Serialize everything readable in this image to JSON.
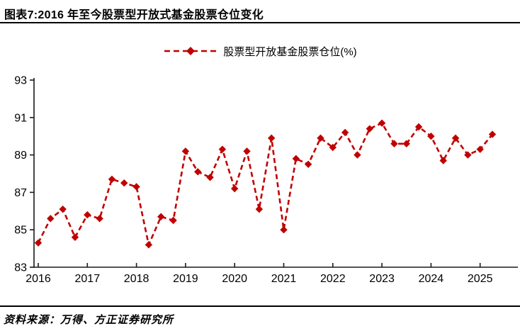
{
  "header": {
    "title": "图表7:2016 年至今股票型开放式基金股票仓位变化"
  },
  "legend": {
    "label": "股票型开放基金股票仓位(%)"
  },
  "footer": {
    "source": "资料来源：万得、方正证券研究所"
  },
  "colors": {
    "series": "#c00000",
    "axis": "#1a1a1a",
    "text": "#000000"
  },
  "chart_data": {
    "type": "line",
    "title": "图表7:2016 年至今股票型开放式基金股票仓位变化",
    "legend_label": "股票型开放基金股票仓位(%)",
    "legend_position": "top-center",
    "line_style": "dashed",
    "marker": "diamond",
    "grid": false,
    "xlabel": "",
    "ylabel": "",
    "ylim": [
      83,
      93
    ],
    "y_ticks": [
      83,
      85,
      87,
      89,
      91,
      93
    ],
    "x_tick_years": [
      2016,
      2017,
      2018,
      2019,
      2020,
      2021,
      2022,
      2023,
      2024,
      2025
    ],
    "categories": [
      "2016Q1",
      "2016Q2",
      "2016Q3",
      "2016Q4",
      "2017Q1",
      "2017Q2",
      "2017Q3",
      "2017Q4",
      "2018Q1",
      "2018Q2",
      "2018Q3",
      "2018Q4",
      "2019Q1",
      "2019Q2",
      "2019Q3",
      "2019Q4",
      "2020Q1",
      "2020Q2",
      "2020Q3",
      "2020Q4",
      "2021Q1",
      "2021Q2",
      "2021Q3",
      "2021Q4",
      "2022Q1",
      "2022Q2",
      "2022Q3",
      "2022Q4",
      "2023Q1",
      "2023Q2",
      "2023Q3",
      "2023Q4",
      "2024Q1",
      "2024Q2",
      "2024Q3",
      "2024Q4",
      "2025Q1",
      "2025Q2"
    ],
    "values": [
      84.3,
      85.6,
      86.1,
      84.6,
      85.8,
      85.6,
      87.7,
      87.5,
      87.3,
      84.2,
      85.7,
      85.5,
      89.2,
      88.1,
      87.8,
      89.3,
      87.2,
      89.2,
      86.1,
      89.9,
      85.0,
      88.8,
      88.5,
      89.9,
      89.4,
      90.2,
      89.0,
      90.4,
      90.7,
      89.6,
      89.6,
      90.5,
      90.0,
      88.7,
      89.9,
      89.0,
      89.3,
      90.1
    ]
  }
}
